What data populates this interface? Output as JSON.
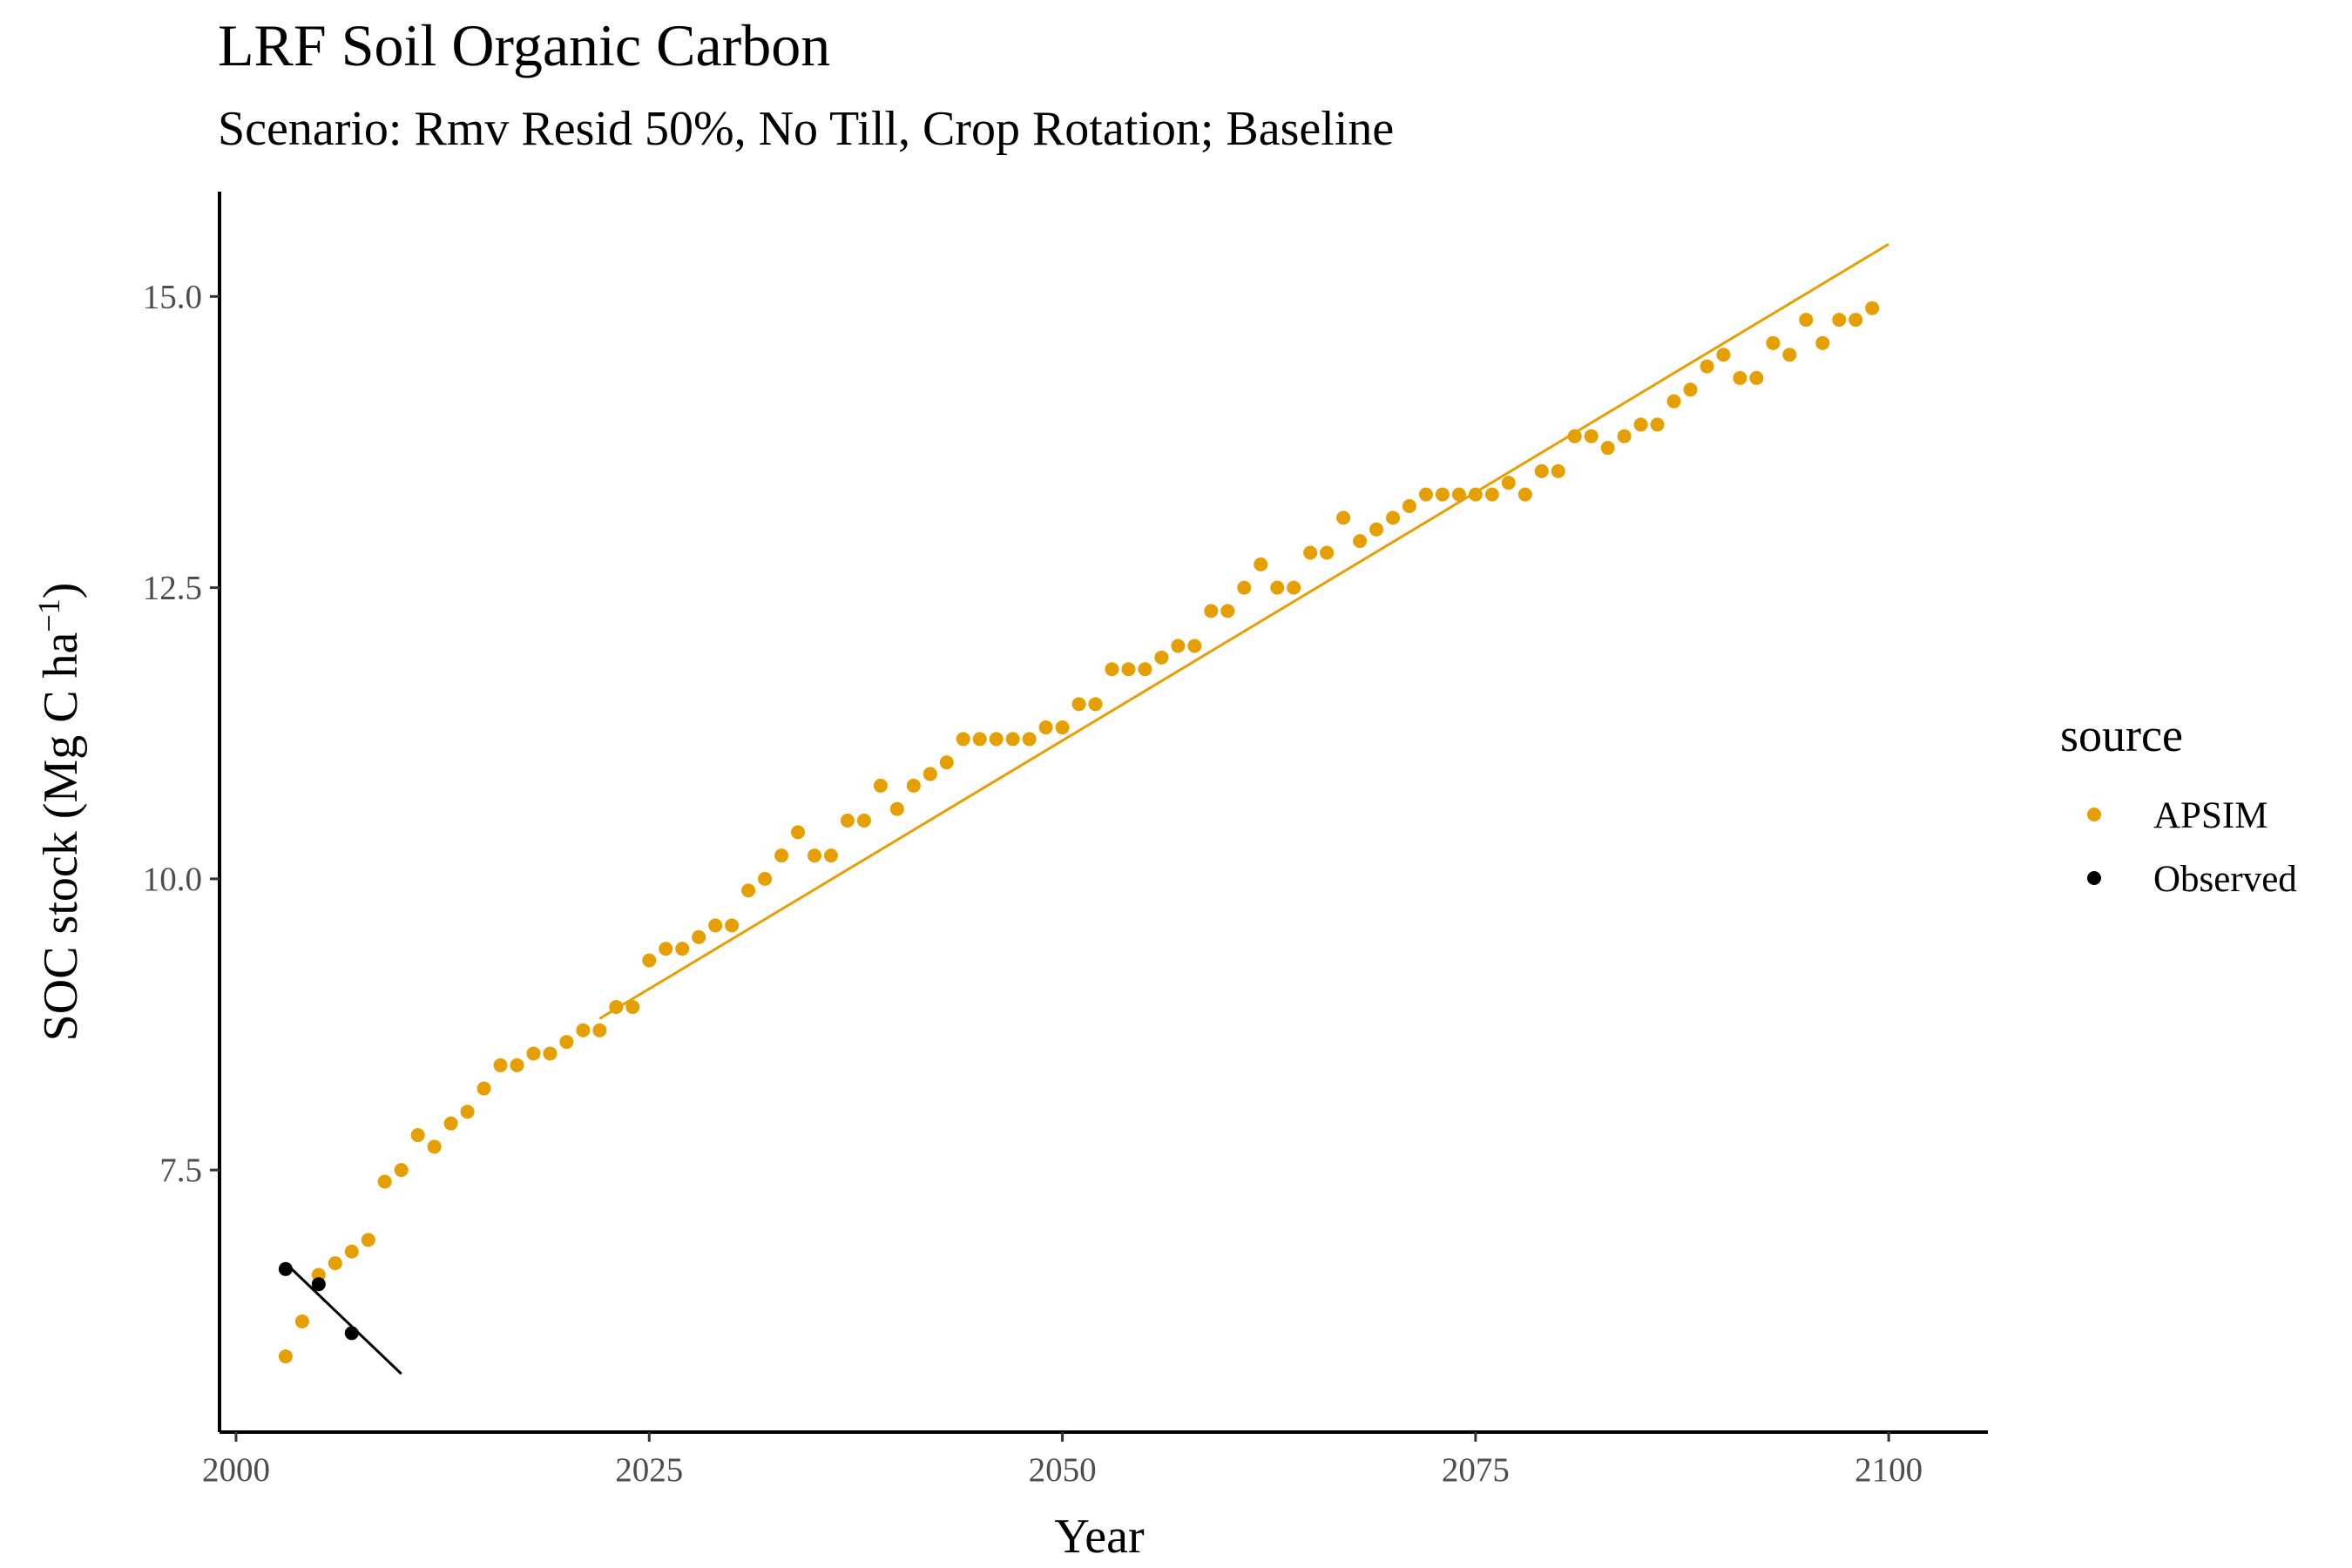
{
  "chart_data": {
    "type": "scatter",
    "title": "LRF Soil Organic Carbon",
    "subtitle": "Scenario: Rmv Resid 50%, No Till, Crop Rotation; Baseline",
    "xlabel": "Year",
    "ylabel": "SOC stock (Mg C ha",
    "ylabel_superscript": "−1",
    "ylabel_suffix": ")",
    "xlim": [
      1999,
      2106
    ],
    "ylim": [
      5.25,
      15.9
    ],
    "x_ticks": [
      2000,
      2025,
      2050,
      2075,
      2100
    ],
    "x_tick_labels": [
      "2000",
      "2025",
      "2050",
      "2075",
      "2100"
    ],
    "y_ticks": [
      7.5,
      10.0,
      12.5,
      15.0
    ],
    "y_tick_labels": [
      "7.5",
      "10.0",
      "12.5",
      "15.0"
    ],
    "grid": false,
    "legend": {
      "title": "source",
      "position": "right",
      "entries": [
        {
          "label": "APSIM",
          "color": "#E69F00"
        },
        {
          "label": "Observed",
          "color": "#000000"
        }
      ]
    },
    "series": [
      {
        "name": "APSIM",
        "color": "#E69F00",
        "x": [
          2003,
          2004,
          2005,
          2006,
          2007,
          2008,
          2009,
          2010,
          2011,
          2012,
          2013,
          2014,
          2015,
          2016,
          2017,
          2018,
          2019,
          2020,
          2021,
          2022,
          2023,
          2024,
          2025,
          2026,
          2027,
          2028,
          2029,
          2030,
          2031,
          2032,
          2033,
          2034,
          2035,
          2036,
          2037,
          2038,
          2039,
          2040,
          2041,
          2042,
          2043,
          2044,
          2045,
          2046,
          2047,
          2048,
          2049,
          2050,
          2051,
          2052,
          2053,
          2054,
          2055,
          2056,
          2057,
          2058,
          2059,
          2060,
          2061,
          2062,
          2063,
          2064,
          2065,
          2066,
          2067,
          2068,
          2069,
          2070,
          2071,
          2072,
          2073,
          2074,
          2075,
          2076,
          2077,
          2078,
          2079,
          2080,
          2081,
          2082,
          2083,
          2084,
          2085,
          2086,
          2087,
          2088,
          2089,
          2090,
          2091,
          2092,
          2093,
          2094,
          2095,
          2096,
          2097,
          2098,
          2099
        ],
        "y": [
          5.9,
          6.2,
          6.6,
          6.7,
          6.8,
          6.9,
          7.4,
          7.5,
          7.8,
          7.7,
          7.9,
          8.0,
          8.2,
          8.4,
          8.4,
          8.5,
          8.5,
          8.6,
          8.7,
          8.7,
          8.9,
          8.9,
          9.3,
          9.4,
          9.4,
          9.5,
          9.6,
          9.6,
          9.9,
          10.0,
          10.2,
          10.4,
          10.2,
          10.2,
          10.5,
          10.5,
          10.8,
          10.6,
          10.8,
          10.9,
          11.0,
          11.2,
          11.2,
          11.2,
          11.2,
          11.2,
          11.3,
          11.3,
          11.5,
          11.5,
          11.8,
          11.8,
          11.8,
          11.9,
          12.0,
          12.0,
          12.3,
          12.3,
          12.5,
          12.7,
          12.5,
          12.5,
          12.8,
          12.8,
          13.1,
          12.9,
          13.0,
          13.1,
          13.2,
          13.3,
          13.3,
          13.3,
          13.3,
          13.3,
          13.4,
          13.3,
          13.5,
          13.5,
          13.8,
          13.8,
          13.7,
          13.8,
          13.9,
          13.9,
          14.1,
          14.2,
          14.4,
          14.5,
          14.3,
          14.3,
          14.6,
          14.5,
          14.8,
          14.6,
          14.8,
          14.8,
          14.9
        ]
      },
      {
        "name": "Observed",
        "color": "#000000",
        "x": [
          2003,
          2005,
          2007
        ],
        "y": [
          6.65,
          6.52,
          6.1
        ]
      }
    ],
    "trend_lines": [
      {
        "series": "APSIM",
        "color": "#E69F00",
        "x": [
          2022,
          2100
        ],
        "y": [
          8.8,
          15.45
        ]
      },
      {
        "series": "Observed",
        "color": "#000000",
        "x": [
          2003,
          2010
        ],
        "y": [
          6.7,
          5.75
        ]
      }
    ]
  }
}
